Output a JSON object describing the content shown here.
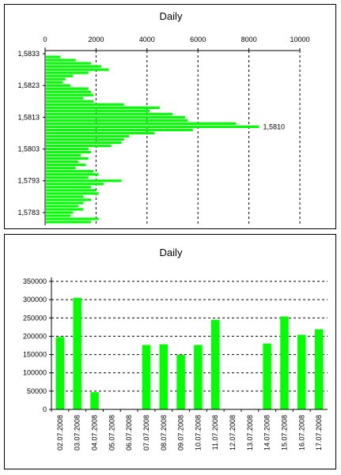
{
  "chart_data": [
    {
      "type": "bar",
      "orientation": "horizontal",
      "title": "Daily",
      "xlim": [
        0,
        10000
      ],
      "x_ticks": [
        "0",
        "2000",
        "4000",
        "6000",
        "8000",
        "10000"
      ],
      "y_range": [
        1.5779,
        1.5834
      ],
      "y_tick_values": [
        1.5833,
        1.5823,
        1.5813,
        1.5803,
        1.5793,
        1.5783
      ],
      "y_ticks": [
        "1,5833",
        "1,5823",
        "1,5813",
        "1,5803",
        "1,5793",
        "1,5783"
      ],
      "annotation": {
        "label": "1,5810",
        "y": 1.581
      },
      "grid": "vertical dashed",
      "bar_color": "#00ff00",
      "levels": [
        1.5832,
        1.5831,
        1.583,
        1.5829,
        1.5828,
        1.5827,
        1.5826,
        1.5825,
        1.5824,
        1.5823,
        1.5822,
        1.5821,
        1.582,
        1.5819,
        1.5818,
        1.5817,
        1.5816,
        1.5815,
        1.5814,
        1.5813,
        1.5812,
        1.5811,
        1.581,
        1.5809,
        1.5808,
        1.5807,
        1.5806,
        1.5805,
        1.5804,
        1.5803,
        1.5802,
        1.5801,
        1.58,
        1.5799,
        1.5798,
        1.5797,
        1.5796,
        1.5795,
        1.5794,
        1.5793,
        1.5792,
        1.5791,
        1.579,
        1.5789,
        1.5788,
        1.5787,
        1.5786,
        1.5785,
        1.5784,
        1.5783,
        1.5782,
        1.5781,
        1.578
      ],
      "values": [
        600,
        1200,
        1800,
        2200,
        2500,
        1700,
        1100,
        800,
        700,
        1000,
        1700,
        1800,
        1900,
        1500,
        1900,
        3100,
        4500,
        4100,
        5000,
        5500,
        5600,
        7500,
        8400,
        5800,
        4300,
        3300,
        3100,
        3000,
        2600,
        1700,
        1800,
        1400,
        1700,
        1300,
        1600,
        1200,
        1900,
        2100,
        1700,
        3000,
        2300,
        1800,
        2000,
        2100,
        1500,
        1800,
        1500,
        1300,
        1500,
        1100,
        1000,
        2100,
        1800
      ]
    },
    {
      "type": "bar",
      "title": "Daily",
      "ylim": [
        0,
        350000
      ],
      "y_ticks": [
        "0",
        "50000",
        "100000",
        "150000",
        "200000",
        "250000",
        "300000",
        "350000"
      ],
      "grid": "horizontal dashed",
      "bar_color": "#00ff00",
      "categories": [
        "02.07.2008",
        "03.07.2008",
        "04.07.2008",
        "05.07.2008",
        "06.07.2008",
        "07.07.2008",
        "08.07.2008",
        "09.07.2008",
        "10.07.2008",
        "11.07.2008",
        "12.07.2008",
        "13.07.2008",
        "14.07.2008",
        "15.07.2008",
        "16.07.2008",
        "17.07.2008"
      ],
      "values": [
        198000,
        305000,
        47000,
        0,
        0,
        176000,
        178000,
        149000,
        176000,
        245000,
        0,
        0,
        180000,
        254000,
        204000,
        219000
      ]
    }
  ]
}
